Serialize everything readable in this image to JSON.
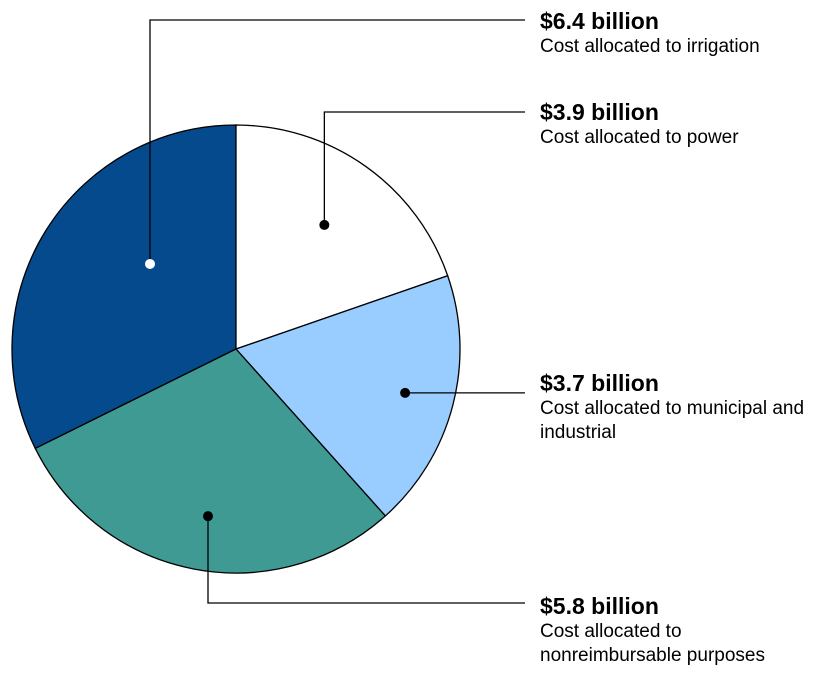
{
  "chart_data": {
    "type": "pie",
    "unit": "billion dollars",
    "slices": [
      {
        "value": 6.4,
        "value_label": "$6.4 billion",
        "desc": "Cost allocated to irrigation",
        "color": "#044a8c"
      },
      {
        "value": 3.9,
        "value_label": "$3.9 billion",
        "desc": "Cost allocated to power",
        "color": "#ffffff"
      },
      {
        "value": 3.7,
        "value_label": "$3.7 billion",
        "desc": "Cost allocated to municipal and industrial",
        "color": "#99ccff"
      },
      {
        "value": 5.8,
        "value_label": "$5.8 billion",
        "desc": "Cost allocated to nonreimbursable purposes",
        "color": "#3f9a94"
      }
    ]
  }
}
